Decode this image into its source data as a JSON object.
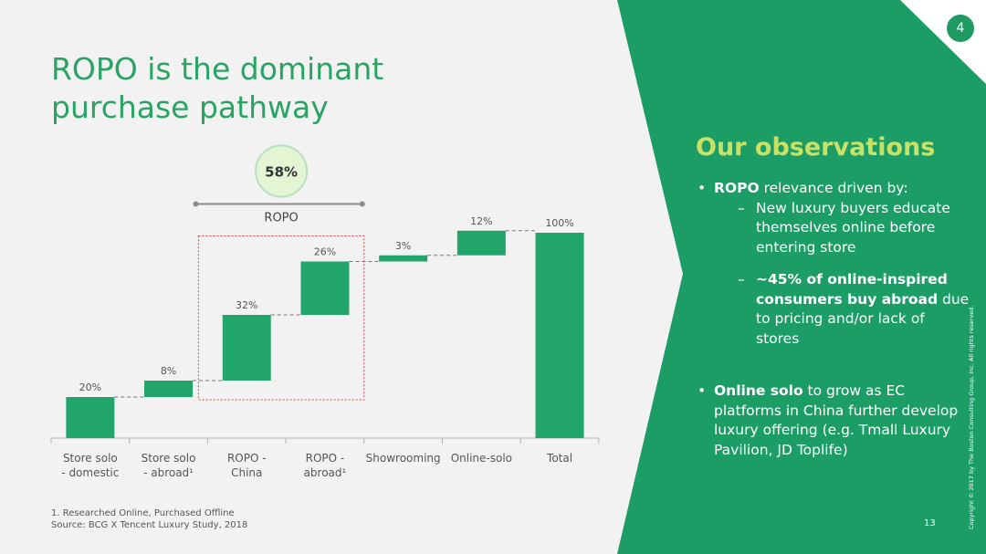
{
  "slide": {
    "title_line1": "ROPO is the dominant",
    "title_line2": "purchase pathway",
    "page_badge": "4",
    "slide_number": "13",
    "footnote": "1. Researched Online, Purchased Offline",
    "source": "Source: BCG X Tencent Luxury Study, 2018",
    "copyright": "Copyright © 2017 by The Boston Consulting Group, Inc. All rights reserved."
  },
  "observations": {
    "title": "Our observations",
    "bullet1_bold": "ROPO",
    "bullet1_text": " relevance driven by:",
    "sub1": "New luxury buyers educate themselves online before entering store",
    "sub2_bold": "~45% of online-inspired consumers buy abroad",
    "sub2_text": " due to pricing and/or lack of stores",
    "bullet2_bold": "Online solo",
    "bullet2_text": " to grow as EC platforms in China further develop luxury offering (e.g. Tmall Luxury Pavilion, JD Toplife)"
  },
  "colors": {
    "bar": "#22a56a",
    "title": "#2aa364",
    "panel": "#1d9d66",
    "highlight": "#c9e265",
    "ropo_box": "#e0434a"
  },
  "chart_data": {
    "type": "bar",
    "subtype": "waterfall",
    "categories": [
      [
        "Store solo",
        "- domestic"
      ],
      [
        "Store solo",
        "- abroad¹"
      ],
      [
        "ROPO -",
        "China"
      ],
      [
        "ROPO -",
        "abroad¹"
      ],
      [
        "Showrooming"
      ],
      [
        "Online-solo"
      ],
      [
        "Total"
      ]
    ],
    "values": [
      20,
      8,
      32,
      26,
      3,
      12,
      100
    ],
    "value_labels": [
      "20%",
      "8%",
      "32%",
      "26%",
      "3%",
      "12%",
      "100%"
    ],
    "is_total": [
      false,
      false,
      false,
      false,
      false,
      false,
      true
    ],
    "ylim": [
      0,
      100
    ],
    "ropo_bracket": {
      "label": "ROPO",
      "value_label": "58%",
      "spans_categories": [
        2,
        3
      ]
    },
    "grid": false,
    "legend": "none"
  }
}
